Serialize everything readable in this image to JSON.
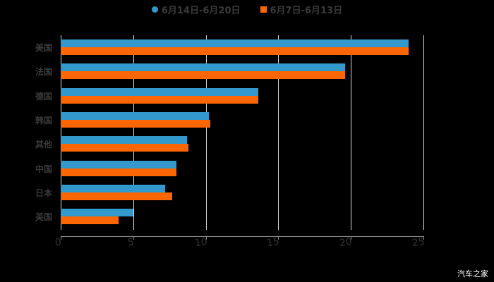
{
  "chart_data": {
    "type": "bar",
    "orientation": "horizontal",
    "title": "",
    "categories": [
      "美国",
      "法国",
      "德国",
      "韩国",
      "其他",
      "中国",
      "日本",
      "英国"
    ],
    "series": [
      {
        "name": "6月14日-6月20日",
        "color": "#3399cc",
        "values": [
          24.0,
          19.6,
          13.6,
          10.2,
          8.7,
          8.0,
          7.2,
          5.0
        ]
      },
      {
        "name": "6月7日-6月13日",
        "color": "#ff6600",
        "values": [
          24.0,
          19.6,
          13.6,
          10.3,
          8.8,
          8.0,
          7.7,
          4.0
        ]
      }
    ],
    "xlabel": "",
    "ylabel": "",
    "xlim": [
      0,
      25
    ],
    "xticks": [
      "0",
      "5",
      "10",
      "15",
      "20",
      "25"
    ],
    "grid": true,
    "legend_position": "top"
  },
  "legend": {
    "series1": "6月14日-6月20日",
    "series2": "6月7日-6月13日"
  },
  "watermark": "汽车之家"
}
